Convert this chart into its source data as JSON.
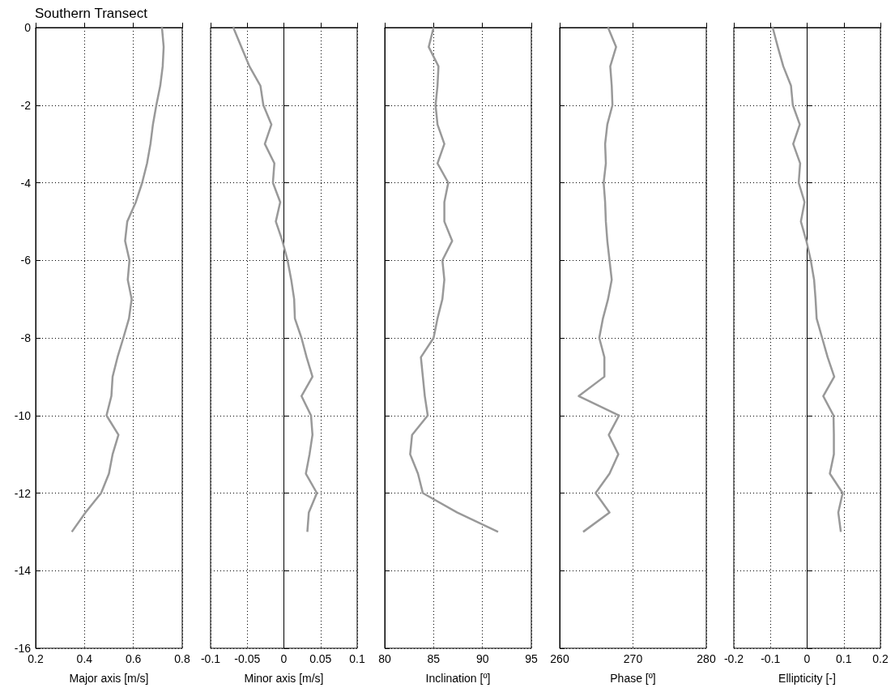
{
  "chart_data": [
    {
      "type": "line",
      "title": "Southern Transect",
      "xlabel": "Major axis [m/s]",
      "xlim": [
        0.2,
        0.8
      ],
      "xticks": [
        0.2,
        0.4,
        0.6,
        0.8
      ],
      "ylim": [
        -16,
        0
      ],
      "yticks": [
        0,
        -2,
        -4,
        -6,
        -8,
        -10,
        -12,
        -14,
        -16
      ],
      "grid": true,
      "series": [
        {
          "color": "#999999",
          "x": [
            0.717,
            0.724,
            0.72,
            0.71,
            0.694,
            0.68,
            0.67,
            0.656,
            0.636,
            0.61,
            0.575,
            0.566,
            0.584,
            0.577,
            0.593,
            0.582,
            0.559,
            0.535,
            0.515,
            0.51,
            0.49,
            0.539,
            0.515,
            0.5,
            0.468,
            0.404,
            0.348
          ],
          "values": [
            0,
            -0.5,
            -1,
            -1.5,
            -2,
            -2.5,
            -3,
            -3.5,
            -4,
            -4.5,
            -5,
            -5.5,
            -6,
            -6.5,
            -7,
            -7.5,
            -8,
            -8.5,
            -9,
            -9.5,
            -10,
            -10.5,
            -11,
            -11.5,
            -12,
            -12.5,
            -13
          ]
        }
      ]
    },
    {
      "type": "line",
      "xlabel": "Minor axis [m/s]",
      "xlim": [
        -0.1,
        0.1
      ],
      "xticks": [
        -0.1,
        -0.05,
        0,
        0.05,
        0.1
      ],
      "ylim": [
        -16,
        0
      ],
      "yticks": [
        0,
        -2,
        -4,
        -6,
        -8,
        -10,
        -12,
        -14,
        -16
      ],
      "grid": true,
      "tick_labels": "x",
      "series": [
        {
          "color": "#999999",
          "x": [
            -0.069,
            -0.058,
            -0.047,
            -0.032,
            -0.028,
            -0.017,
            -0.026,
            -0.013,
            -0.015,
            -0.005,
            -0.011,
            -0.002,
            0.005,
            0.01,
            0.014,
            0.015,
            0.024,
            0.031,
            0.039,
            0.024,
            0.037,
            0.039,
            0.035,
            0.03,
            0.045,
            0.034,
            0.032
          ],
          "values": [
            0,
            -0.5,
            -1,
            -1.5,
            -2,
            -2.5,
            -3,
            -3.5,
            -4,
            -4.5,
            -5,
            -5.5,
            -6,
            -6.5,
            -7,
            -7.5,
            -8,
            -8.5,
            -9,
            -9.5,
            -10,
            -10.5,
            -11,
            -11.5,
            -12,
            -12.5,
            -13
          ]
        }
      ]
    },
    {
      "type": "line",
      "xlabel": "Inclination [º]",
      "xlim": [
        80,
        95
      ],
      "xticks": [
        80,
        85,
        90,
        95
      ],
      "ylim": [
        -16,
        0
      ],
      "yticks": [
        0,
        -2,
        -4,
        -6,
        -8,
        -10,
        -12,
        -14,
        -16
      ],
      "grid": true,
      "tick_labels": "x",
      "series": [
        {
          "color": "#999999",
          "x": [
            85.0,
            84.5,
            85.5,
            85.4,
            85.2,
            85.4,
            86.1,
            85.4,
            86.5,
            86.1,
            86.1,
            86.9,
            85.9,
            86.1,
            85.9,
            85.4,
            85.0,
            83.7,
            83.9,
            84.1,
            84.4,
            82.8,
            82.6,
            83.4,
            83.9,
            87.4,
            91.6
          ],
          "values": [
            0,
            -0.5,
            -1,
            -1.5,
            -2,
            -2.5,
            -3,
            -3.5,
            -4,
            -4.5,
            -5,
            -5.5,
            -6,
            -6.5,
            -7,
            -7.5,
            -8,
            -8.5,
            -9,
            -9.5,
            -10,
            -10.5,
            -11,
            -11.5,
            -12,
            -12.5,
            -13
          ]
        }
      ]
    },
    {
      "type": "line",
      "xlabel": "Phase [º]",
      "xlim": [
        260,
        280
      ],
      "xticks": [
        260,
        270,
        280
      ],
      "ylim": [
        -16,
        0
      ],
      "yticks": [
        0,
        -2,
        -4,
        -6,
        -8,
        -10,
        -12,
        -14,
        -16
      ],
      "grid": true,
      "tick_labels": "x",
      "series": [
        {
          "color": "#999999",
          "x": [
            266.6,
            267.7,
            266.9,
            267.1,
            267.2,
            266.5,
            266.2,
            266.3,
            266.0,
            266.2,
            266.3,
            266.5,
            266.8,
            267.1,
            266.6,
            265.9,
            265.4,
            266.1,
            266.1,
            262.6,
            268.1,
            266.7,
            268.0,
            266.8,
            264.9,
            266.8,
            263.2
          ],
          "values": [
            0,
            -0.5,
            -1,
            -1.5,
            -2,
            -2.5,
            -3,
            -3.5,
            -4,
            -4.5,
            -5,
            -5.5,
            -6,
            -6.5,
            -7,
            -7.5,
            -8,
            -8.5,
            -9,
            -9.5,
            -10,
            -10.5,
            -11,
            -11.5,
            -12,
            -12.5,
            -13
          ]
        }
      ]
    },
    {
      "type": "line",
      "xlabel": "Ellipticity [-]",
      "xlim": [
        -0.2,
        0.2
      ],
      "xticks": [
        -0.2,
        -0.1,
        0,
        0.1,
        0.2
      ],
      "ylim": [
        -16,
        0
      ],
      "yticks": [
        0,
        -2,
        -4,
        -6,
        -8,
        -10,
        -12,
        -14,
        -16
      ],
      "grid": true,
      "tick_labels": "x",
      "series": [
        {
          "color": "#999999",
          "x": [
            -0.094,
            -0.08,
            -0.065,
            -0.044,
            -0.039,
            -0.02,
            -0.038,
            -0.019,
            -0.023,
            -0.007,
            -0.017,
            -0.002,
            0.01,
            0.019,
            0.023,
            0.026,
            0.041,
            0.056,
            0.074,
            0.044,
            0.072,
            0.073,
            0.073,
            0.062,
            0.097,
            0.085,
            0.092
          ],
          "values": [
            0,
            -0.5,
            -1,
            -1.5,
            -2,
            -2.5,
            -3,
            -3.5,
            -4,
            -4.5,
            -5,
            -5.5,
            -6,
            -6.5,
            -7,
            -7.5,
            -8,
            -8.5,
            -9,
            -9.5,
            -10,
            -10.5,
            -11,
            -11.5,
            -12,
            -12.5,
            -13
          ]
        }
      ]
    }
  ]
}
